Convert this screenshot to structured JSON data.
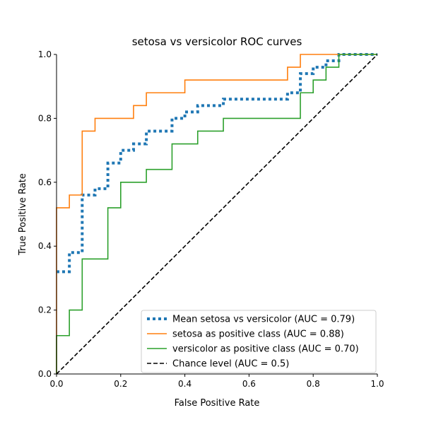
{
  "chart_data": {
    "type": "line",
    "title": "setosa vs versicolor ROC curves",
    "xlabel": "False Positive Rate",
    "ylabel": "True Positive Rate",
    "xlim": [
      0,
      1
    ],
    "ylim": [
      0,
      1
    ],
    "xticks": [
      "0.0",
      "0.2",
      "0.4",
      "0.6",
      "0.8",
      "1.0"
    ],
    "yticks": [
      "0.0",
      "0.2",
      "0.4",
      "0.6",
      "0.8",
      "1.0"
    ],
    "grid": false,
    "legend_position": "lower-right",
    "series": [
      {
        "name": "Mean setosa vs versicolor (AUC = 0.79)",
        "color": "#1f77b4",
        "style": "dotted",
        "step": true,
        "x": [
          0,
          0.04,
          0.08,
          0.12,
          0.16,
          0.2,
          0.24,
          0.28,
          0.36,
          0.4,
          0.44,
          0.52,
          0.72,
          0.76,
          0.8,
          0.84,
          0.88,
          1.0
        ],
        "y": [
          0.32,
          0.38,
          0.56,
          0.58,
          0.66,
          0.7,
          0.72,
          0.76,
          0.8,
          0.82,
          0.84,
          0.86,
          0.88,
          0.94,
          0.96,
          0.98,
          1.0,
          1.0
        ]
      },
      {
        "name": "setosa as positive class (AUC = 0.88)",
        "color": "#ff7f0e",
        "style": "solid",
        "step": true,
        "x": [
          0,
          0,
          0.04,
          0.08,
          0.12,
          0.24,
          0.28,
          0.4,
          0.72,
          0.76,
          1.0
        ],
        "y": [
          0,
          0.52,
          0.56,
          0.76,
          0.8,
          0.84,
          0.88,
          0.92,
          0.96,
          1.0,
          1.0
        ]
      },
      {
        "name": "versicolor as positive class (AUC = 0.70)",
        "color": "#2ca02c",
        "style": "solid",
        "step": true,
        "x": [
          0,
          0,
          0.04,
          0.08,
          0.16,
          0.2,
          0.28,
          0.36,
          0.44,
          0.52,
          0.76,
          0.8,
          0.84,
          0.88,
          1.0
        ],
        "y": [
          0,
          0.12,
          0.2,
          0.36,
          0.52,
          0.6,
          0.64,
          0.72,
          0.76,
          0.8,
          0.88,
          0.92,
          0.96,
          1.0,
          1.0
        ]
      },
      {
        "name": "Chance level (AUC = 0.5)",
        "color": "#000000",
        "style": "dashed",
        "step": false,
        "x": [
          0,
          1
        ],
        "y": [
          0,
          1
        ]
      }
    ]
  }
}
